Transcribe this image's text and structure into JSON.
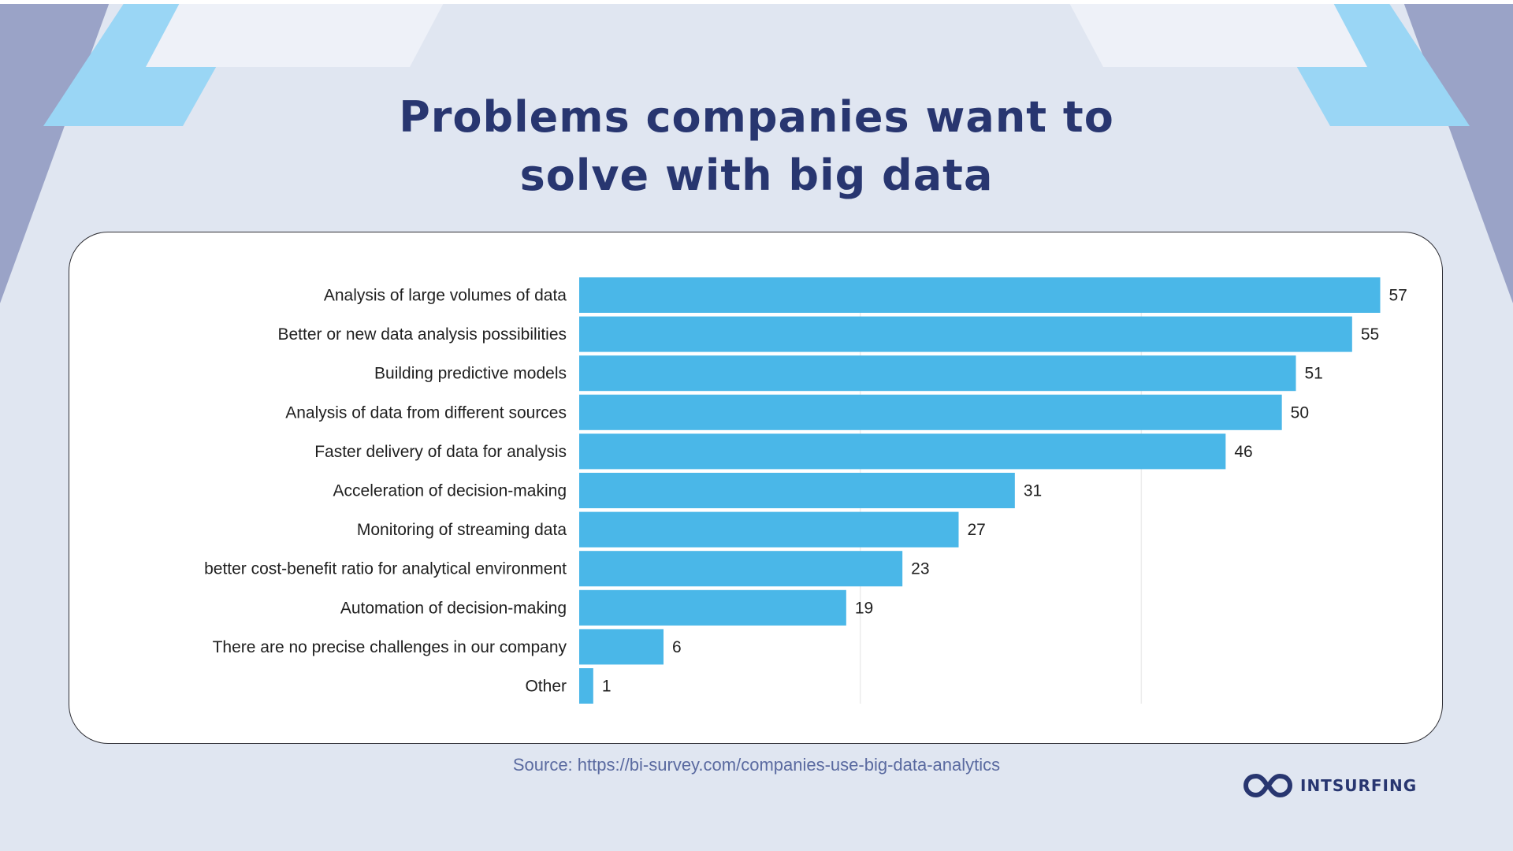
{
  "title": {
    "line1": "Problems companies want to",
    "line2": "solve with big data"
  },
  "chart_data": {
    "type": "bar",
    "orientation": "horizontal",
    "categories": [
      "Analysis of large volumes of data",
      "Better or new data analysis possibilities",
      "Building predictive models",
      "Analysis of data from different sources",
      "Faster delivery of data for analysis",
      "Acceleration of decision-making",
      "Monitoring of streaming data",
      "better cost-benefit ratio for analytical environment",
      "Automation of decision-making",
      "There are no precise challenges in our company",
      "Other"
    ],
    "values": [
      57,
      55,
      51,
      50,
      46,
      31,
      27,
      23,
      19,
      6,
      1
    ],
    "xlim": [
      0,
      60
    ],
    "grid_lines_at": [
      20,
      40
    ],
    "data_labels": true,
    "bar_color": "#4ab7e8"
  },
  "source": "Source: https://bi-survey.com/companies-use-big-data-analytics",
  "logo": {
    "text": "INTSURFING"
  },
  "colors": {
    "background": "#e0e6f1",
    "title": "#283670",
    "bar": "#4ab7e8",
    "accent_light": "#9ad6f5",
    "accent_dark": "#9aa3c7"
  }
}
